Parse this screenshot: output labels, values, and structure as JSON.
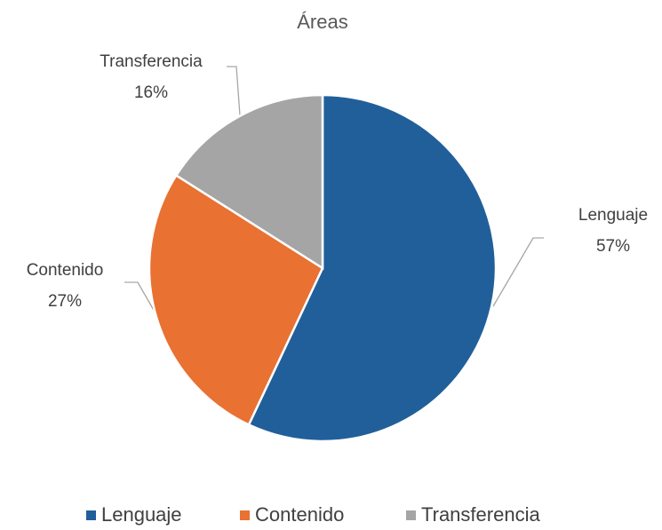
{
  "chart_data": {
    "type": "pie",
    "title": "Áreas",
    "categories": [
      "Lenguaje",
      "Contenido",
      "Transferencia"
    ],
    "values": [
      57,
      27,
      16
    ],
    "value_labels": [
      "57%",
      "27%",
      "16%"
    ],
    "colors": [
      "#215f9a",
      "#e97132",
      "#a5a5a5"
    ],
    "legend": "bottom"
  }
}
